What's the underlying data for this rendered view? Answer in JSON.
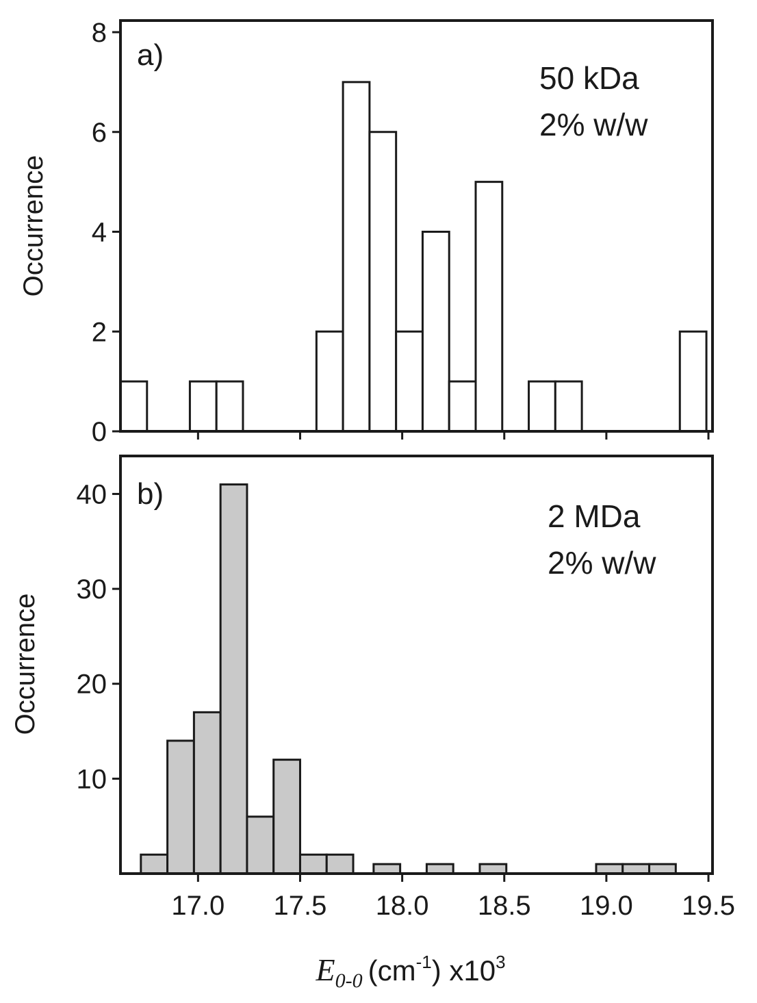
{
  "chart_data": [
    {
      "type": "bar",
      "panel_label": "a)",
      "annotation": [
        "50 kDa",
        "2% w/w"
      ],
      "ylabel": "Occurrence",
      "xlabel": "",
      "bin_width": 0.13,
      "x_start": [
        16.62,
        16.96,
        17.09,
        17.58,
        17.71,
        17.84,
        17.97,
        18.1,
        18.23,
        18.36,
        18.62,
        18.75,
        19.36
      ],
      "values": [
        1,
        1,
        1,
        2,
        7,
        6,
        2,
        4,
        1,
        5,
        1,
        1,
        2
      ],
      "xlim": [
        16.62,
        19.52
      ],
      "ylim": [
        0,
        8
      ],
      "yticks": [
        0,
        2,
        4,
        6,
        8
      ],
      "grid": false
    },
    {
      "type": "bar",
      "panel_label": "b)",
      "annotation": [
        "2 MDa",
        "2% w/w"
      ],
      "ylabel": "Occurrence",
      "xlabel_var": "E",
      "xlabel_sub": "0-0",
      "xlabel_unit": "(cm",
      "xlabel_exp": "-1",
      "xlabel_tail": ") x10",
      "xlabel_scale": "3",
      "bin_width": 0.13,
      "x_start": [
        16.72,
        16.85,
        16.98,
        17.11,
        17.24,
        17.37,
        17.5,
        17.63,
        17.86,
        18.12,
        18.38,
        18.95,
        19.08,
        19.21
      ],
      "values": [
        2,
        14,
        17,
        41,
        6,
        12,
        2,
        2,
        1,
        1,
        1,
        1,
        1,
        1
      ],
      "xlim": [
        16.62,
        19.52
      ],
      "ylim": [
        0,
        44
      ],
      "yticks": [
        10,
        20,
        30,
        40
      ],
      "xticks": [
        "17.0",
        "17.5",
        "18.0",
        "18.5",
        "19.0",
        "19.5"
      ],
      "grid": false
    }
  ]
}
